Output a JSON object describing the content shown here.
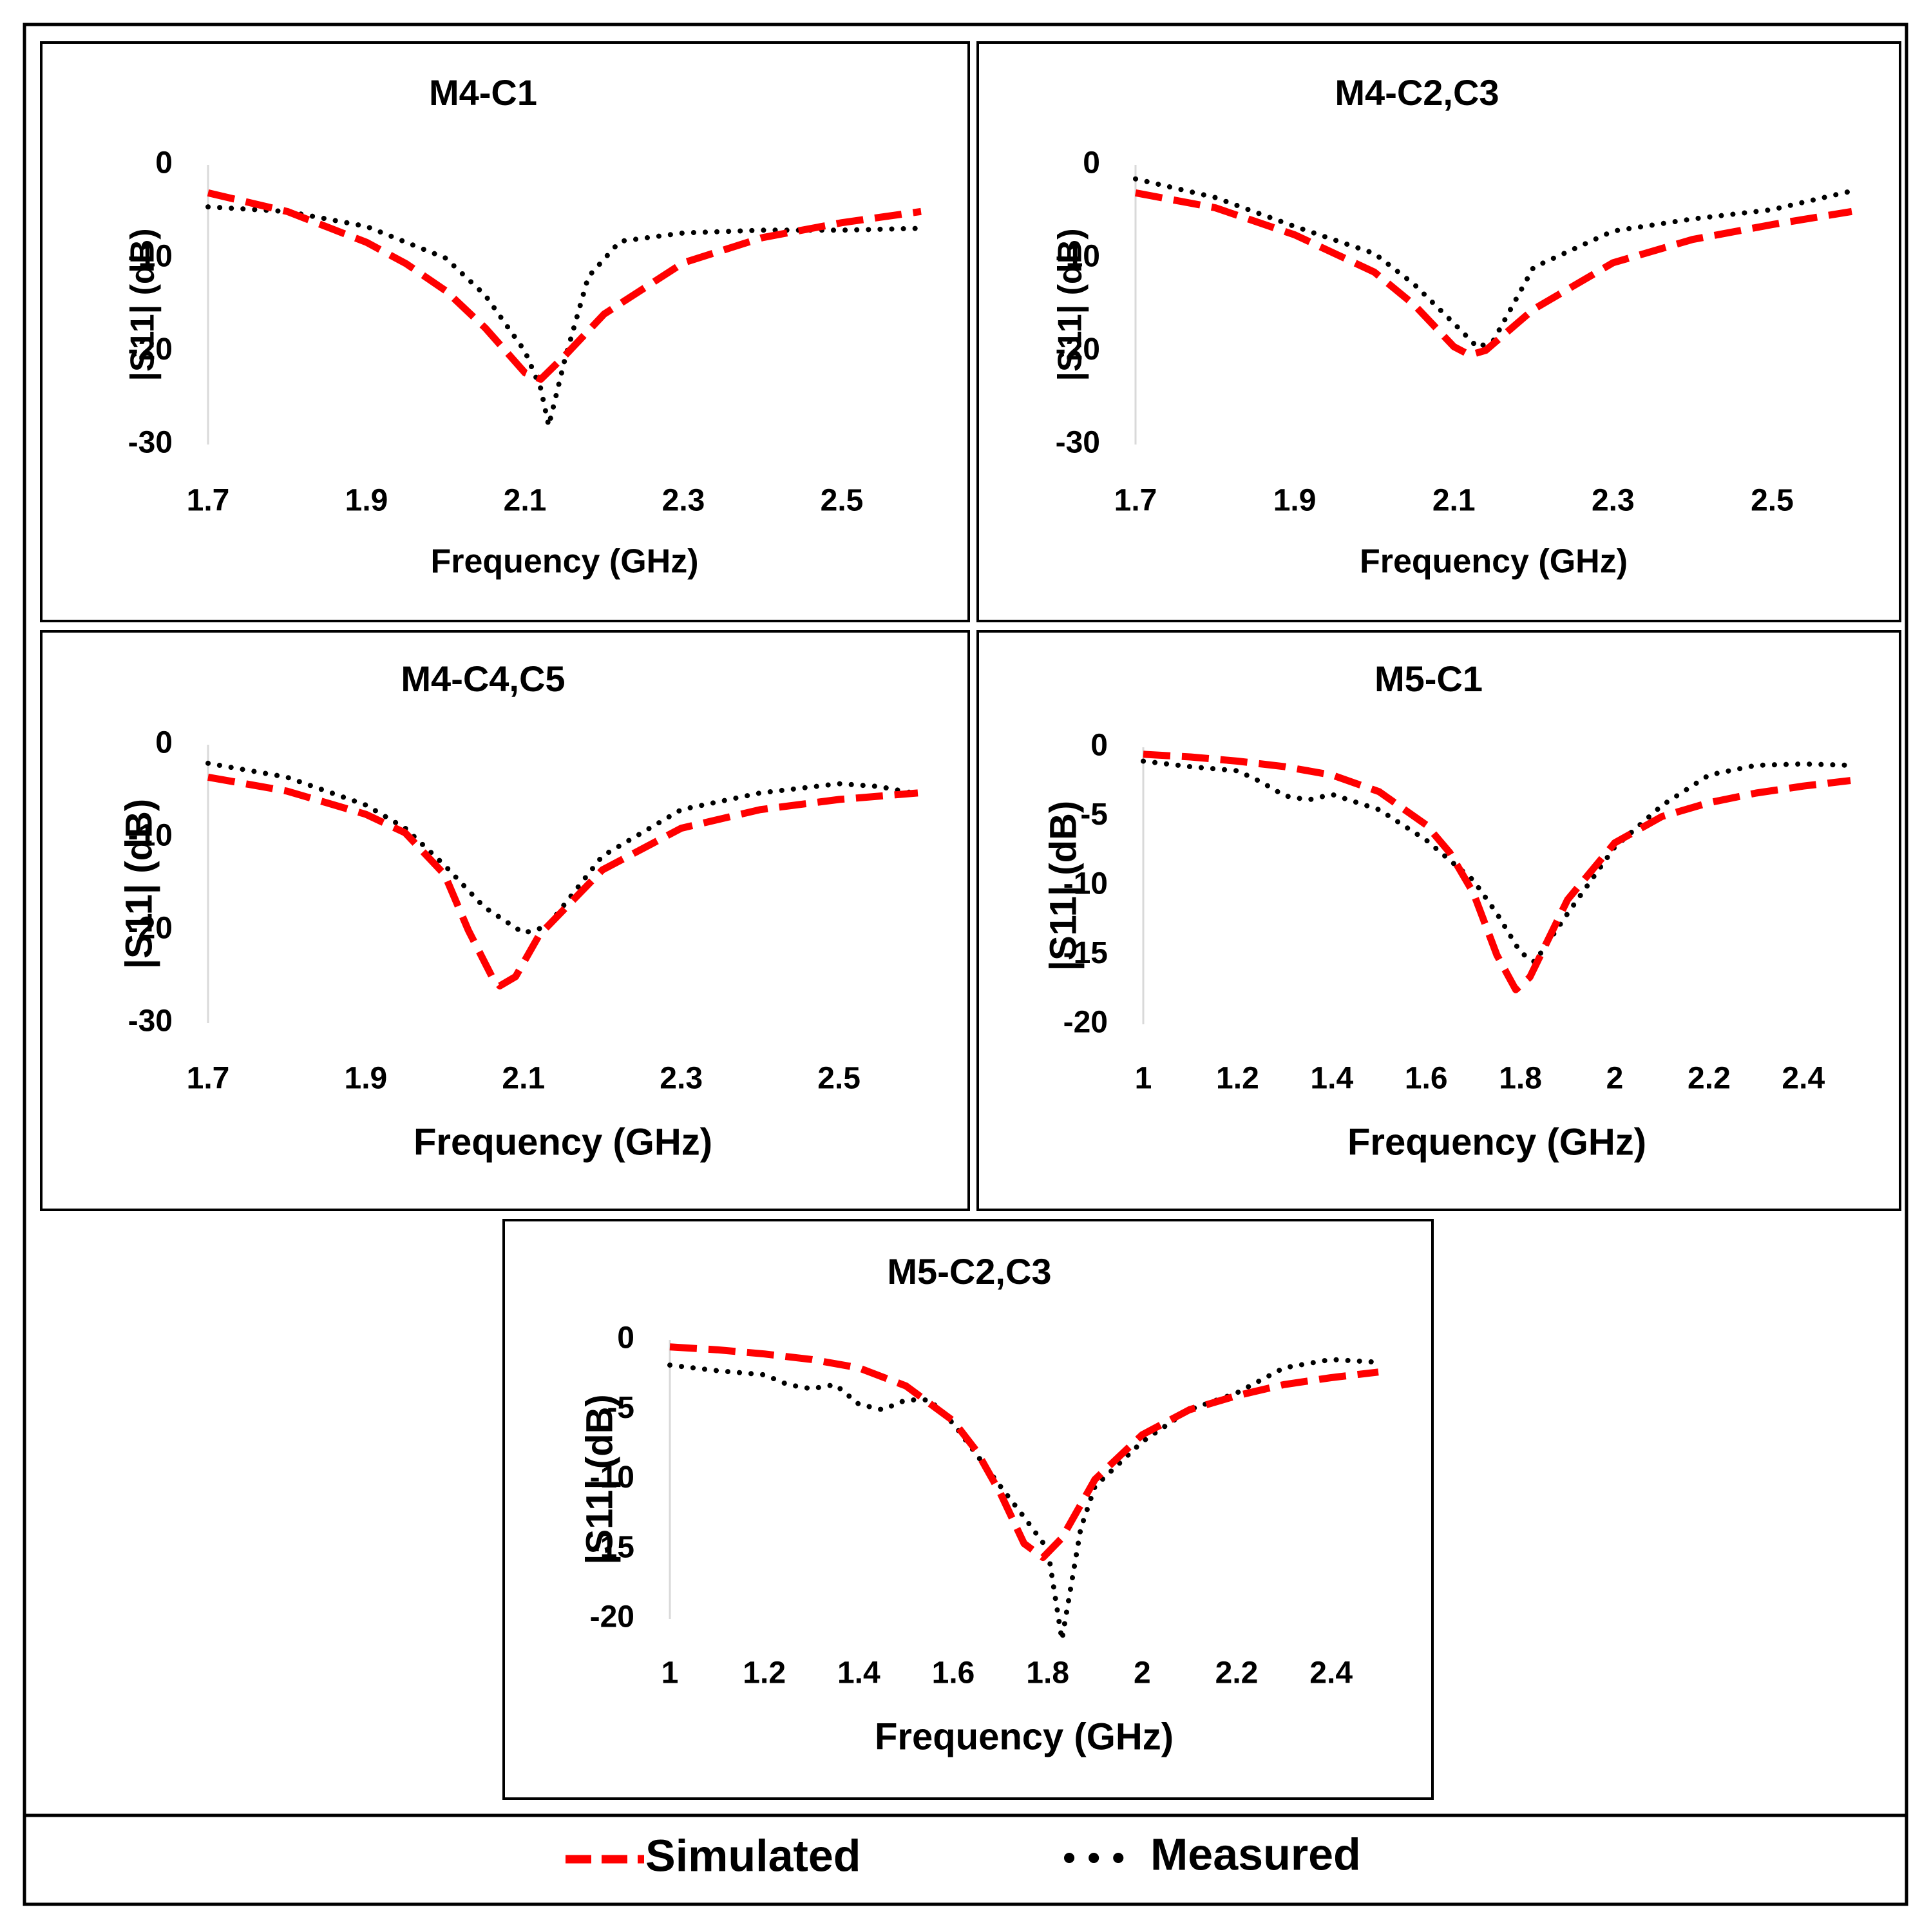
{
  "figure": {
    "legend": {
      "items": [
        "Simulated",
        "Measured"
      ]
    },
    "colors": {
      "simulated": "#ff0000",
      "measured": "#000000",
      "frame": "#000000",
      "axis_line": "#d9d9d9"
    }
  },
  "chart_data": [
    {
      "type": "line",
      "title": "M4-C1",
      "xlabel": "Frequency (GHz)",
      "ylabel": "|S11| (dB)",
      "xlim": [
        1.7,
        2.6
      ],
      "ylim": [
        -30,
        0
      ],
      "xticks": [
        1.7,
        1.9,
        2.1,
        2.3,
        2.5
      ],
      "xtick_labels": [
        "1.7",
        "1.9",
        "2.1",
        "2.3",
        "2.5"
      ],
      "yticks": [
        0,
        -10,
        -20,
        -30
      ],
      "ytick_labels": [
        "0",
        "-10",
        "-20",
        "-30"
      ],
      "series": [
        {
          "name": "Simulated",
          "style": "dashed",
          "x": [
            1.7,
            1.8,
            1.9,
            1.95,
            2.0,
            2.05,
            2.1,
            2.12,
            2.15,
            2.2,
            2.3,
            2.4,
            2.5,
            2.6
          ],
          "y": [
            -3,
            -5,
            -8.3,
            -10.6,
            -13.5,
            -17.5,
            -22.3,
            -23,
            -20.5,
            -16,
            -10.5,
            -7.8,
            -6.2,
            -5
          ]
        },
        {
          "name": "Measured",
          "style": "dotted",
          "x": [
            1.7,
            1.8,
            1.9,
            2.0,
            2.05,
            2.1,
            2.12,
            2.13,
            2.15,
            2.18,
            2.22,
            2.3,
            2.4,
            2.5,
            2.6
          ],
          "y": [
            -4.5,
            -5,
            -6.6,
            -10,
            -14,
            -20,
            -24,
            -28,
            -21,
            -12,
            -8.2,
            -7.3,
            -7,
            -7,
            -6.8
          ]
        }
      ]
    },
    {
      "type": "line",
      "title": "M4-C2,C3",
      "xlabel": "Frequency (GHz)",
      "ylabel": "|S11| (dB)",
      "xlim": [
        1.7,
        2.6
      ],
      "ylim": [
        -30,
        0
      ],
      "xticks": [
        1.7,
        1.9,
        2.1,
        2.3,
        2.5
      ],
      "xtick_labels": [
        "1.7",
        "1.9",
        "2.1",
        "2.3",
        "2.5"
      ],
      "yticks": [
        0,
        -10,
        -20,
        -30
      ],
      "ytick_labels": [
        "0",
        "-10",
        "-20",
        "-30"
      ],
      "series": [
        {
          "name": "Simulated",
          "style": "dashed",
          "x": [
            1.7,
            1.8,
            1.9,
            2.0,
            2.05,
            2.1,
            2.12,
            2.14,
            2.2,
            2.3,
            2.4,
            2.5,
            2.6
          ],
          "y": [
            -3,
            -4.6,
            -7.5,
            -11.5,
            -15,
            -19.5,
            -20.4,
            -19.9,
            -15.5,
            -10.5,
            -8,
            -6.4,
            -5
          ]
        },
        {
          "name": "Measured",
          "style": "dotted",
          "x": [
            1.7,
            1.8,
            1.9,
            2.0,
            2.05,
            2.1,
            2.13,
            2.15,
            2.2,
            2.3,
            2.4,
            2.5,
            2.6
          ],
          "y": [
            -1.5,
            -3.5,
            -6.6,
            -9.5,
            -12.8,
            -17,
            -19.6,
            -18.8,
            -11,
            -7.1,
            -5.8,
            -4.8,
            -2.8
          ]
        }
      ]
    },
    {
      "type": "line",
      "title": "M4-C4,C5",
      "xlabel": "Frequency (GHz)",
      "ylabel": "|S11| (dB)",
      "xlim": [
        1.7,
        2.6
      ],
      "ylim": [
        -30,
        0
      ],
      "xticks": [
        1.7,
        1.9,
        2.1,
        2.3,
        2.5
      ],
      "xtick_labels": [
        "1.7",
        "1.9",
        "2.1",
        "2.3",
        "2.5"
      ],
      "yticks": [
        0,
        -10,
        -20,
        -30
      ],
      "ytick_labels": [
        "0",
        "-10",
        "-20",
        "-30"
      ],
      "series": [
        {
          "name": "Simulated",
          "style": "dashed",
          "x": [
            1.7,
            1.8,
            1.9,
            1.95,
            2.0,
            2.03,
            2.06,
            2.07,
            2.09,
            2.12,
            2.2,
            2.3,
            2.4,
            2.5,
            2.6
          ],
          "y": [
            -3.5,
            -5,
            -7.5,
            -9.5,
            -14,
            -20,
            -25,
            -26,
            -25,
            -20.5,
            -13.5,
            -9,
            -7,
            -5.9,
            -5.2
          ]
        },
        {
          "name": "Measured",
          "style": "dotted",
          "x": [
            1.7,
            1.8,
            1.9,
            1.95,
            2.0,
            2.05,
            2.1,
            2.13,
            2.2,
            2.3,
            2.4,
            2.5,
            2.55,
            2.6
          ],
          "y": [
            -2,
            -3.5,
            -6.5,
            -9,
            -13,
            -17.5,
            -20.3,
            -19.6,
            -12,
            -7,
            -5.2,
            -4.2,
            -4.5,
            -5.3
          ]
        }
      ]
    },
    {
      "type": "line",
      "title": "M5-C1",
      "xlabel": "Frequency (GHz)",
      "ylabel": "|S11| (dB)",
      "xlim": [
        1,
        2.5
      ],
      "ylim": [
        -20,
        0
      ],
      "xticks": [
        1,
        1.2,
        1.4,
        1.6,
        1.8,
        2,
        2.2,
        2.4
      ],
      "xtick_labels": [
        "1",
        "1.2",
        "1.4",
        "1.6",
        "1.8",
        "2",
        "2.2",
        "2.4"
      ],
      "yticks": [
        0,
        -5,
        -10,
        -15,
        -20
      ],
      "ytick_labels": [
        "0",
        "-5",
        "-10",
        "-15",
        "-20"
      ],
      "series": [
        {
          "name": "Simulated",
          "style": "dashed",
          "x": [
            1,
            1.1,
            1.2,
            1.3,
            1.4,
            1.5,
            1.6,
            1.65,
            1.7,
            1.75,
            1.79,
            1.82,
            1.9,
            2.0,
            2.1,
            2.2,
            2.3,
            2.4,
            2.5
          ],
          "y": [
            -0.5,
            -0.7,
            -1,
            -1.4,
            -2,
            -3.2,
            -5.6,
            -7.6,
            -10.5,
            -15,
            -17.5,
            -16.6,
            -11,
            -6.9,
            -5,
            -4,
            -3.3,
            -2.8,
            -2.4
          ]
        },
        {
          "name": "Measured",
          "style": "dotted",
          "x": [
            1,
            1.1,
            1.2,
            1.25,
            1.3,
            1.35,
            1.4,
            1.5,
            1.6,
            1.7,
            1.75,
            1.8,
            1.83,
            1.9,
            2.0,
            2.1,
            2.2,
            2.3,
            2.4,
            2.5
          ],
          "y": [
            -1,
            -1.4,
            -1.7,
            -2.5,
            -3.5,
            -3.8,
            -3.4,
            -4.5,
            -6.7,
            -9.6,
            -12,
            -14.8,
            -15.5,
            -12,
            -7.2,
            -4.2,
            -2,
            -1.3,
            -1.2,
            -1.3
          ]
        }
      ]
    },
    {
      "type": "line",
      "title": "M5-C2,C3",
      "xlabel": "Frequency (GHz)",
      "ylabel": "|S11| (dB)",
      "xlim": [
        1,
        2.5
      ],
      "ylim": [
        -20,
        0
      ],
      "xticks": [
        1,
        1.2,
        1.4,
        1.6,
        1.8,
        2,
        2.2,
        2.4
      ],
      "xtick_labels": [
        "1",
        "1.2",
        "1.4",
        "1.6",
        "1.8",
        "2",
        "2.2",
        "2.4"
      ],
      "yticks": [
        0,
        -5,
        -10,
        -15,
        -20
      ],
      "ytick_labels": [
        "0",
        "-5",
        "-10",
        "-15",
        "-20"
      ],
      "series": [
        {
          "name": "Simulated",
          "style": "dashed",
          "x": [
            1,
            1.1,
            1.2,
            1.3,
            1.4,
            1.5,
            1.6,
            1.65,
            1.7,
            1.75,
            1.79,
            1.83,
            1.9,
            2.0,
            2.1,
            2.2,
            2.3,
            2.4,
            2.5
          ],
          "y": [
            -0.5,
            -0.7,
            -1,
            -1.4,
            -2,
            -3.3,
            -5.8,
            -8,
            -11,
            -14.6,
            -15.6,
            -14.2,
            -10,
            -6.8,
            -5,
            -4,
            -3.2,
            -2.7,
            -2.3
          ]
        },
        {
          "name": "Measured",
          "style": "dotted",
          "x": [
            1,
            1.1,
            1.2,
            1.25,
            1.3,
            1.35,
            1.4,
            1.45,
            1.5,
            1.55,
            1.6,
            1.7,
            1.75,
            1.8,
            1.83,
            1.87,
            1.9,
            2.0,
            2.1,
            2.2,
            2.3,
            2.4,
            2.5
          ],
          "y": [
            -1.8,
            -2.2,
            -2.5,
            -3.2,
            -3.5,
            -3.2,
            -4.6,
            -5,
            -4.3,
            -4.3,
            -6,
            -10.5,
            -12.7,
            -15,
            -21.5,
            -13.5,
            -10.5,
            -7.3,
            -5,
            -3.8,
            -2,
            -1.4,
            -1.6
          ]
        }
      ]
    }
  ]
}
